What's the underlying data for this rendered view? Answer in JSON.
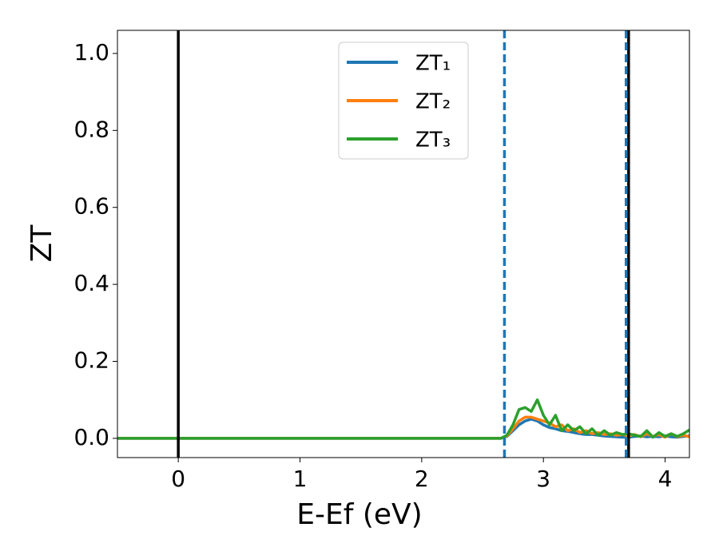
{
  "chart_data": {
    "type": "line",
    "xlabel": "E-Ef (eV)",
    "ylabel": "ZT",
    "x": [
      -0.5,
      2.6,
      2.65,
      2.7,
      2.75,
      2.8,
      2.85,
      2.9,
      2.95,
      3.0,
      3.05,
      3.1,
      3.15,
      3.2,
      3.25,
      3.3,
      3.35,
      3.4,
      3.45,
      3.5,
      3.55,
      3.6,
      3.65,
      3.7,
      3.75,
      3.8,
      3.85,
      3.9,
      3.95,
      4.0,
      4.05,
      4.1,
      4.15,
      4.2
    ],
    "series": [
      {
        "name": "ZT₁",
        "color": "#1f77b4",
        "values": [
          0,
          0,
          0,
          0.005,
          0.02,
          0.035,
          0.045,
          0.05,
          0.045,
          0.035,
          0.028,
          0.025,
          0.02,
          0.018,
          0.015,
          0.012,
          0.01,
          0.01,
          0.008,
          0.006,
          0.005,
          0.004,
          0.003,
          0.003,
          0.005,
          0.006,
          0.004,
          0.005,
          0.004,
          0.006,
          0.004,
          0.003,
          0.005,
          0.006
        ]
      },
      {
        "name": "ZT₂",
        "color": "#ff7f0e",
        "values": [
          0,
          0,
          0,
          0.006,
          0.025,
          0.045,
          0.055,
          0.055,
          0.05,
          0.045,
          0.04,
          0.03,
          0.035,
          0.02,
          0.025,
          0.015,
          0.02,
          0.012,
          0.015,
          0.01,
          0.012,
          0.008,
          0.01,
          0.006,
          0.01,
          0.004,
          0.012,
          0.005,
          0.01,
          0.003,
          0.012,
          0.004,
          0.008,
          0.004
        ]
      },
      {
        "name": "ZT₃",
        "color": "#2ca02c",
        "values": [
          0,
          0,
          0,
          0.008,
          0.035,
          0.075,
          0.08,
          0.07,
          0.1,
          0.06,
          0.035,
          0.06,
          0.02,
          0.035,
          0.02,
          0.03,
          0.012,
          0.025,
          0.008,
          0.02,
          0.008,
          0.015,
          0.01,
          0.012,
          0.008,
          0.005,
          0.02,
          0.003,
          0.015,
          0.005,
          0.012,
          0.005,
          0.012,
          0.022
        ]
      }
    ],
    "vlines": [
      {
        "x": 0,
        "color": "#000000",
        "dashed": false
      },
      {
        "x": 3.7,
        "color": "#000000",
        "dashed": false
      },
      {
        "x": 2.68,
        "color": "#1f77b4",
        "dashed": true
      },
      {
        "x": 3.68,
        "color": "#1f77b4",
        "dashed": true
      }
    ],
    "xlim": [
      -0.5,
      4.2
    ],
    "xticks": [
      0,
      1,
      2,
      3,
      4
    ],
    "ylim": [
      -0.05,
      1.06
    ],
    "yticks": [
      {
        "value": 0,
        "label": "0.0"
      },
      {
        "value": 0.2,
        "label": "0.2"
      },
      {
        "value": 0.4,
        "label": "0.4"
      },
      {
        "value": 0.6,
        "label": "0.6"
      },
      {
        "value": 0.8,
        "label": "0.8"
      },
      {
        "value": 1,
        "label": "1.0"
      }
    ],
    "legend": "upper center"
  }
}
